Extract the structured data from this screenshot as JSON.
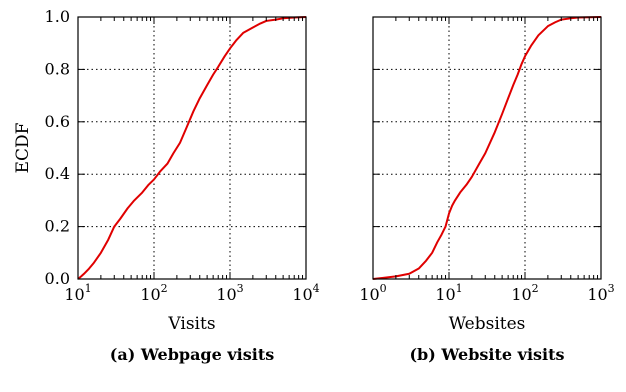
{
  "chart_data": [
    {
      "type": "line",
      "caption": "(a) Webpage visits",
      "xlabel": "Visits",
      "ylabel": "ECDF",
      "xscale": "log",
      "xlim": [
        10,
        10000
      ],
      "ylim": [
        0,
        1
      ],
      "grid": true,
      "x_ticks": [
        {
          "base": "10",
          "exp": "1"
        },
        {
          "base": "10",
          "exp": "2"
        },
        {
          "base": "10",
          "exp": "3"
        },
        {
          "base": "10",
          "exp": "4"
        }
      ],
      "y_ticks": [
        "0.0",
        "0.2",
        "0.4",
        "0.6",
        "0.8",
        "1.0"
      ],
      "color": "#e00000",
      "series": [
        {
          "x": [
            10,
            11,
            12,
            14,
            16,
            20,
            25,
            30,
            36,
            45,
            55,
            70,
            85,
            100,
            120,
            150,
            180,
            220,
            270,
            330,
            400,
            500,
            600,
            700,
            850,
            1000,
            1200,
            1500,
            2000,
            2500,
            3000,
            4000,
            5000,
            7000,
            10000
          ],
          "y": [
            0.0,
            0.01,
            0.02,
            0.04,
            0.06,
            0.1,
            0.15,
            0.2,
            0.23,
            0.27,
            0.3,
            0.33,
            0.36,
            0.38,
            0.41,
            0.44,
            0.48,
            0.52,
            0.58,
            0.64,
            0.69,
            0.74,
            0.78,
            0.81,
            0.85,
            0.88,
            0.91,
            0.94,
            0.96,
            0.975,
            0.985,
            0.99,
            0.995,
            0.998,
            1.0
          ]
        }
      ]
    },
    {
      "type": "line",
      "caption": "(b) Website visits",
      "xlabel": "Websites",
      "xscale": "log",
      "xlim": [
        1,
        1000
      ],
      "ylim": [
        0,
        1
      ],
      "grid": true,
      "x_ticks": [
        {
          "base": "10",
          "exp": "0"
        },
        {
          "base": "10",
          "exp": "1"
        },
        {
          "base": "10",
          "exp": "2"
        },
        {
          "base": "10",
          "exp": "3"
        }
      ],
      "color": "#e00000",
      "series": [
        {
          "x": [
            1,
            2,
            3,
            4,
            5,
            6,
            7,
            8,
            9,
            10,
            11,
            12,
            14,
            17,
            20,
            25,
            30,
            40,
            50,
            60,
            70,
            80,
            90,
            100,
            120,
            150,
            200,
            250,
            300,
            400,
            500,
            700,
            1000
          ],
          "y": [
            0.0,
            0.01,
            0.02,
            0.04,
            0.07,
            0.1,
            0.14,
            0.17,
            0.2,
            0.25,
            0.28,
            0.3,
            0.33,
            0.36,
            0.39,
            0.44,
            0.48,
            0.56,
            0.63,
            0.69,
            0.74,
            0.78,
            0.82,
            0.85,
            0.89,
            0.93,
            0.965,
            0.98,
            0.99,
            0.995,
            0.998,
            0.999,
            1.0
          ]
        }
      ]
    }
  ]
}
